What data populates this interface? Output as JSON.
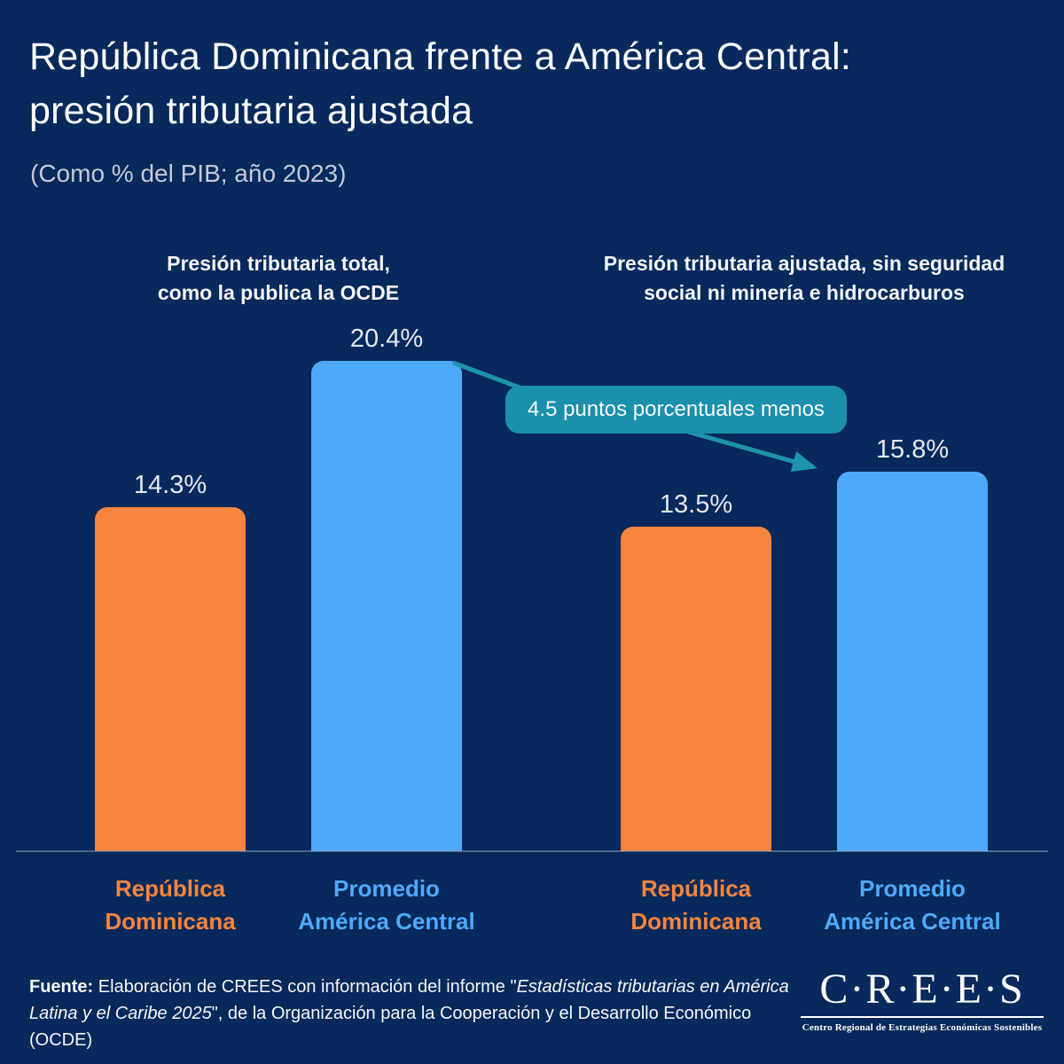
{
  "page": {
    "title_lines": [
      "República Dominicana frente a América Central:",
      "presión tributaria ajustada"
    ],
    "subtitle": "(Como % del PIB; año 2023)"
  },
  "chart_data": {
    "type": "bar",
    "title": "República Dominicana frente a América Central: presión tributaria ajustada",
    "subtitle": "(Como % del PIB; año 2023)",
    "year": 2023,
    "unit": "% del PIB",
    "ylim": [
      0,
      22
    ],
    "grid": false,
    "legend": "none",
    "groups": [
      {
        "label": "Presión tributaria total, como la publica la OCDE",
        "label_lines": [
          "Presión tributaria total,",
          "como la publica la OCDE"
        ],
        "bars": [
          {
            "category": "República Dominicana",
            "category_lines": [
              "República",
              "Dominicana"
            ],
            "value": 14.3,
            "label": "14.3%",
            "color": "#F5853F"
          },
          {
            "category": "Promedio América Central",
            "category_lines": [
              "Promedio",
              "América Central"
            ],
            "value": 20.4,
            "label": "20.4%",
            "color": "#4FA9FA"
          }
        ]
      },
      {
        "label": "Presión tributaria ajustada, sin seguridad social ni minería e hidrocarburos",
        "label_lines": [
          "Presión tributaria ajustada, sin seguridad",
          "social ni minería e hidrocarburos"
        ],
        "bars": [
          {
            "category": "República Dominicana",
            "category_lines": [
              "República",
              "Dominicana"
            ],
            "value": 13.5,
            "label": "13.5%",
            "color": "#F5853F"
          },
          {
            "category": "Promedio América Central",
            "category_lines": [
              "Promedio",
              "América Central"
            ],
            "value": 15.8,
            "label": "15.8%",
            "color": "#4FA9FA"
          }
        ]
      }
    ],
    "annotation": {
      "text": "4.5 puntos porcentuales menos",
      "color": "#1A90AD"
    }
  },
  "colors": {
    "background": "#07295B",
    "bar_orange": "#F5853F",
    "bar_blue": "#4FA9FA",
    "callout_teal": "#1A90AD",
    "title_text": "#FCFDFE",
    "subtitle_text": "#C3CAD7"
  },
  "footer": {
    "segments": [
      {
        "text": "Fuente: ",
        "bold": true
      },
      {
        "text": "Elaboración de CREES con información del informe \""
      },
      {
        "text": "Estadísticas tributarias en América Latina y el Caribe 2025",
        "italic": true
      },
      {
        "text": "\", de la Organización para la Cooperación y el Desarrollo Económico (OCDE)"
      }
    ]
  },
  "logo": {
    "wordmark": "C·R·E·E·S",
    "tagline": "Centro Regional de Estrategias Económicas Sostenibles"
  }
}
